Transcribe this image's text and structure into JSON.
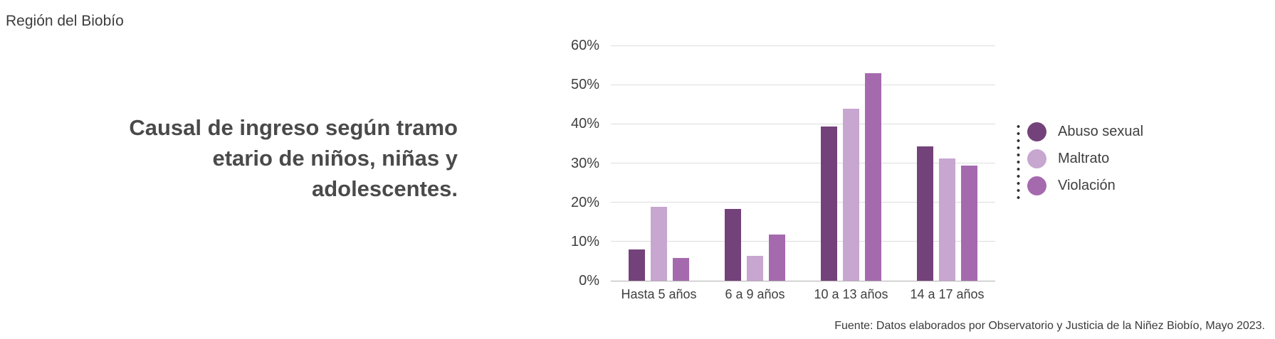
{
  "header": {
    "region_label": "Región del Biobío"
  },
  "title": {
    "lines": [
      "Causal de ingreso según tramo",
      "etario de niños, niñas y",
      "adolescentes."
    ]
  },
  "footer": {
    "source": "Fuente: Datos elaborados por Observatorio y Justicia de la Niñez Biobío, Mayo 2023."
  },
  "colors": {
    "abuso_sexual": "#74427A",
    "maltrato": "#C7A6D0",
    "violacion": "#A56AAE",
    "gridline": "#DCDCDC",
    "axis_line": "#B0B0B0",
    "text": "#3F3F3F",
    "title_text": "#4A4A4A",
    "legend_dotted_line": "#333333",
    "background": "#FFFFFF"
  },
  "chart_data": {
    "type": "bar",
    "title": "Causal de ingreso según tramo etario de niños, niñas y adolescentes.",
    "categories": [
      "Hasta 5 años",
      "6 a 9 años",
      "10 a 13 años",
      "14 a 17 años"
    ],
    "series": [
      {
        "name": "Abuso sexual",
        "color": "#74427A",
        "values": [
          8.0,
          18.3,
          39.4,
          34.3
        ]
      },
      {
        "name": "Maltrato",
        "color": "#C7A6D0",
        "values": [
          18.9,
          6.4,
          43.8,
          31.2
        ]
      },
      {
        "name": "Violación",
        "color": "#A56AAE",
        "values": [
          5.8,
          11.8,
          52.9,
          29.4
        ]
      }
    ],
    "xlabel": "",
    "ylabel": "",
    "ylim": [
      0,
      60
    ],
    "ytick_step": 10,
    "ytick_format": "percent",
    "grid": true,
    "legend_position": "right"
  }
}
